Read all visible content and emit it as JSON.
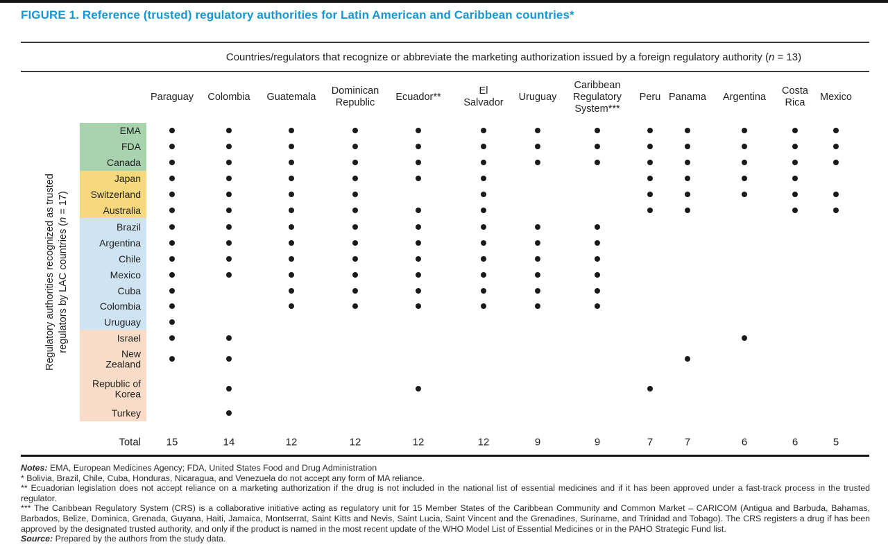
{
  "title": "FIGURE 1. Reference (trusted) regulatory authorities for Latin American and Caribbean countries*",
  "colors": {
    "title_blue": "#1697d3",
    "dot": "#1b1b1b",
    "group_colors": [
      "#a8d3ae",
      "#f6d97c",
      "#cfe4f2",
      "#f8dcc7"
    ]
  },
  "chart_data": {
    "type": "heatmap",
    "span_header": {
      "prefix": "Countries/regulators that recognize or abbreviate the marketing authorization issued by a foreign regulatory authority (",
      "n": "n",
      "suffix": " = 13)"
    },
    "side_label": {
      "line1": "Regulatory authorities recognized as trusted",
      "line2_prefix": "regulators by LAC countries (",
      "n": "n",
      "line2_suffix": " = 17)"
    },
    "columns": [
      {
        "name": "Paraguay"
      },
      {
        "name": "Colombia"
      },
      {
        "name": "Guatemala"
      },
      {
        "name": "Dominican Republic",
        "lines": [
          "Dominican",
          "Republic"
        ]
      },
      {
        "name": "Ecuador**"
      },
      {
        "name": "El Salvador",
        "lines": [
          "El",
          "Salvador"
        ]
      },
      {
        "name": "Uruguay"
      },
      {
        "name": "Caribbean Regulatory System***",
        "lines": [
          "Caribbean",
          "Regulatory",
          "System***"
        ]
      },
      {
        "name": "Peru"
      },
      {
        "name": "Panama"
      },
      {
        "name": "Argentina"
      },
      {
        "name": "Costa Rica",
        "lines": [
          "Costa",
          "Rica"
        ]
      },
      {
        "name": "Mexico"
      }
    ],
    "rows": [
      {
        "label": "EMA",
        "group": 0
      },
      {
        "label": "FDA",
        "group": 0
      },
      {
        "label": "Canada",
        "group": 0
      },
      {
        "label": "Japan",
        "group": 1
      },
      {
        "label": "Switzerland",
        "group": 1
      },
      {
        "label": "Australia",
        "group": 1
      },
      {
        "label": "Brazil",
        "group": 2
      },
      {
        "label": "Argentina",
        "group": 2
      },
      {
        "label": "Chile",
        "group": 2
      },
      {
        "label": "Mexico",
        "group": 2
      },
      {
        "label": "Cuba",
        "group": 2
      },
      {
        "label": "Colombia",
        "group": 2
      },
      {
        "label": "Uruguay",
        "group": 2
      },
      {
        "label": "Israel",
        "group": 3
      },
      {
        "label": "New Zealand",
        "lines": [
          "New",
          "Zealand"
        ],
        "group": 3
      },
      {
        "label": "Republic of Korea",
        "lines": [
          "Republic of",
          "Korea"
        ],
        "group": 3
      },
      {
        "label": "Turkey",
        "group": 3
      }
    ],
    "matrix": [
      [
        1,
        1,
        1,
        1,
        1,
        1,
        1,
        1,
        1,
        1,
        1,
        1,
        1
      ],
      [
        1,
        1,
        1,
        1,
        1,
        1,
        1,
        1,
        1,
        1,
        1,
        1,
        1
      ],
      [
        1,
        1,
        1,
        1,
        1,
        1,
        1,
        1,
        1,
        1,
        1,
        1,
        1
      ],
      [
        1,
        1,
        1,
        1,
        1,
        1,
        0,
        0,
        1,
        1,
        1,
        1,
        0
      ],
      [
        1,
        1,
        1,
        1,
        0,
        1,
        0,
        0,
        1,
        1,
        1,
        1,
        1
      ],
      [
        1,
        1,
        1,
        1,
        1,
        1,
        0,
        0,
        1,
        1,
        0,
        1,
        1
      ],
      [
        1,
        1,
        1,
        1,
        1,
        1,
        1,
        1,
        0,
        0,
        0,
        0,
        0
      ],
      [
        1,
        1,
        1,
        1,
        1,
        1,
        1,
        1,
        0,
        0,
        0,
        0,
        0
      ],
      [
        1,
        1,
        1,
        1,
        1,
        1,
        1,
        1,
        0,
        0,
        0,
        0,
        0
      ],
      [
        1,
        1,
        1,
        1,
        1,
        1,
        1,
        1,
        0,
        0,
        0,
        0,
        0
      ],
      [
        1,
        0,
        1,
        1,
        1,
        1,
        1,
        1,
        0,
        0,
        0,
        0,
        0
      ],
      [
        1,
        0,
        1,
        1,
        1,
        1,
        1,
        1,
        0,
        0,
        0,
        0,
        0
      ],
      [
        1,
        0,
        0,
        0,
        0,
        0,
        0,
        0,
        0,
        0,
        0,
        0,
        0
      ],
      [
        1,
        1,
        0,
        0,
        0,
        0,
        0,
        0,
        0,
        0,
        1,
        0,
        0
      ],
      [
        1,
        1,
        0,
        0,
        0,
        0,
        0,
        0,
        0,
        1,
        0,
        0,
        0
      ],
      [
        0,
        1,
        0,
        0,
        1,
        0,
        0,
        0,
        1,
        0,
        0,
        0,
        0
      ],
      [
        0,
        1,
        0,
        0,
        0,
        0,
        0,
        0,
        0,
        0,
        0,
        0,
        0
      ]
    ],
    "totals_label": "Total",
    "column_totals": [
      15,
      14,
      12,
      12,
      12,
      12,
      9,
      9,
      7,
      7,
      6,
      6,
      5
    ]
  },
  "notes": {
    "label": "Notes:",
    "text": " EMA, European Medicines Agency; FDA, United States Food and Drug Administration",
    "star1": "* Bolivia, Brazil, Chile, Cuba, Honduras, Nicaragua, and Venezuela do not accept any form of MA reliance.",
    "star2": "** Ecuadorian legislation does not accept reliance on a marketing authorization if the drug is not included in the national list of essential medicines and if it has been approved under a fast-track process in the trusted regulator.",
    "star3": "*** The Caribbean Regulatory System (CRS) is a collaborative initiative acting as regulatory unit for 15 Member States of the Caribbean Community and Common Market – CARICOM (Antigua and Barbuda, Bahamas, Barbados, Belize, Dominica, Grenada, Guyana, Haiti, Jamaica, Montserrat, Saint Kitts and Nevis, Saint Lucia, Saint Vincent and the Grenadines, Suriname, and Trinidad and Tobago). The CRS registers a drug if has been approved by the designated trusted authority, and only if the product is named in the most recent update of the WHO Model List of Essential Medicines or in the PAHO Strategic Fund list.",
    "source_label": "Source:",
    "source_text": " Prepared by the authors from the study data."
  }
}
